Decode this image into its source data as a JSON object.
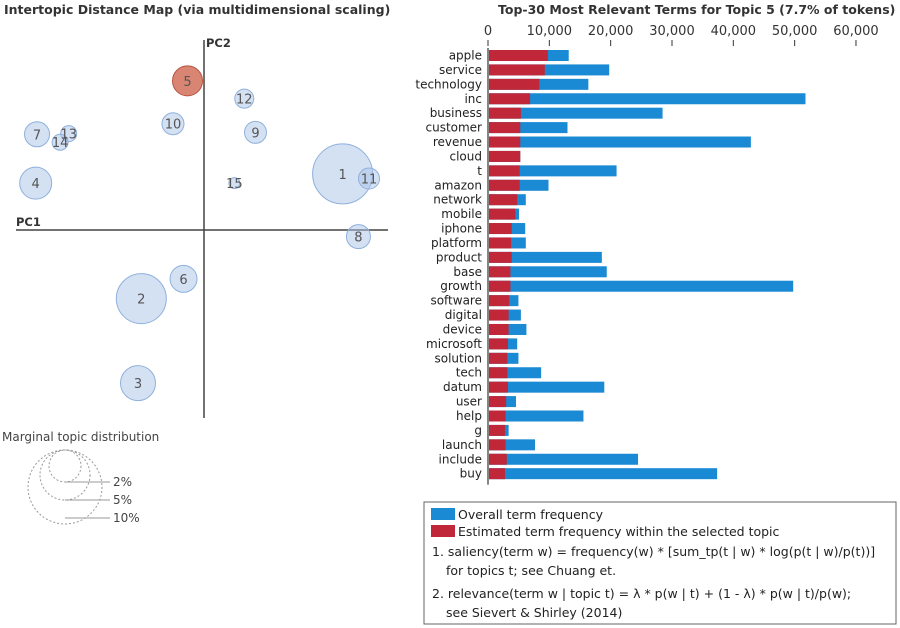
{
  "left_panel": {
    "title": "Intertopic Distance Map (via multidimensional scaling)",
    "pc1_label": "PC1",
    "pc2_label": "PC2",
    "selected_topic": "5",
    "marginal_title": "Marginal topic distribution",
    "marginal_labels": [
      "2%",
      "5%",
      "10%"
    ]
  },
  "legend": {
    "overall": "Overall term frequency",
    "estimated": "Estimated term frequency within the selected topic",
    "note1_line1": "1. saliency(term w) = frequency(w) * [sum_tp(t | w) * log(p(t | w)/p(t))]",
    "note1_line2": "for topics t; see Chuang et.",
    "note2_line1": "2. relevance(term w | topic t) = λ * p(w | t) + (1 - λ) * p(w | t)/p(w);",
    "note2_line2": "see Sievert & Shirley (2014)"
  },
  "colors": {
    "overall": "#1a8ad4",
    "topic": "#c0283a",
    "selected_circle": "#d2705a",
    "topic_circle": "#a9c4e8"
  },
  "chart_data": [
    {
      "type": "scatter",
      "title": "Intertopic Distance Map (via multidimensional scaling)",
      "xlabel": "PC1",
      "ylabel": "PC2",
      "xlim": [
        -0.3,
        0.3
      ],
      "ylim": [
        -0.28,
        0.28
      ],
      "grid": false,
      "points": [
        {
          "topic": "1",
          "x": 0.21,
          "y": 0.085,
          "size": 0.06
        },
        {
          "topic": "2",
          "x": -0.095,
          "y": -0.104,
          "size": 0.05
        },
        {
          "topic": "3",
          "x": -0.1,
          "y": -0.232,
          "size": 0.035
        },
        {
          "topic": "4",
          "x": -0.255,
          "y": 0.071,
          "size": 0.032
        },
        {
          "topic": "5",
          "x": -0.025,
          "y": 0.226,
          "size": 0.03
        },
        {
          "topic": "6",
          "x": -0.031,
          "y": -0.074,
          "size": 0.027
        },
        {
          "topic": "7",
          "x": -0.253,
          "y": 0.145,
          "size": 0.025
        },
        {
          "topic": "8",
          "x": 0.234,
          "y": -0.01,
          "size": 0.024
        },
        {
          "topic": "9",
          "x": 0.078,
          "y": 0.148,
          "size": 0.022
        },
        {
          "topic": "10",
          "x": -0.047,
          "y": 0.161,
          "size": 0.022
        },
        {
          "topic": "11",
          "x": 0.25,
          "y": 0.078,
          "size": 0.021
        },
        {
          "topic": "12",
          "x": 0.061,
          "y": 0.199,
          "size": 0.019
        },
        {
          "topic": "13",
          "x": -0.205,
          "y": 0.146,
          "size": 0.016
        },
        {
          "topic": "14",
          "x": -0.218,
          "y": 0.133,
          "size": 0.016
        },
        {
          "topic": "15",
          "x": 0.046,
          "y": 0.071,
          "size": 0.011
        }
      ]
    },
    {
      "type": "bar",
      "orientation": "horizontal",
      "title": "Top-30 Most Relevant Terms for Topic 5 (7.7% of tokens)",
      "xlim": [
        0,
        60000
      ],
      "xticks": [
        "0",
        "10,000",
        "20,000",
        "30,000",
        "40,000",
        "50,000",
        "60,000"
      ],
      "grid": false,
      "legend_position": "bottom",
      "categories": [
        "apple",
        "service",
        "technology",
        "inc",
        "business",
        "customer",
        "revenue",
        "cloud",
        "t",
        "amazon",
        "network",
        "mobile",
        "iphone",
        "platform",
        "product",
        "base",
        "growth",
        "software",
        "digital",
        "device",
        "microsoft",
        "solution",
        "tech",
        "datum",
        "user",
        "help",
        "g",
        "launch",
        "include",
        "buy"
      ],
      "series": [
        {
          "name": "Overall term frequency",
          "values": [
            13000,
            19600,
            16200,
            51600,
            28300,
            12800,
            42700,
            5100,
            20800,
            9700,
            6000,
            4900,
            5900,
            6000,
            18400,
            19200,
            49600,
            4800,
            5200,
            6100,
            4600,
            4800,
            8500,
            18800,
            4400,
            15400,
            3200,
            7500,
            24300,
            37200
          ]
        },
        {
          "name": "Estimated term frequency within the selected topic",
          "values": [
            9600,
            9100,
            8200,
            6700,
            5200,
            5100,
            5100,
            5100,
            5000,
            5000,
            4600,
            4300,
            3700,
            3600,
            3700,
            3500,
            3500,
            3300,
            3200,
            3200,
            3100,
            3000,
            3000,
            3100,
            2800,
            2700,
            2600,
            2700,
            2900,
            2600
          ]
        }
      ]
    }
  ]
}
